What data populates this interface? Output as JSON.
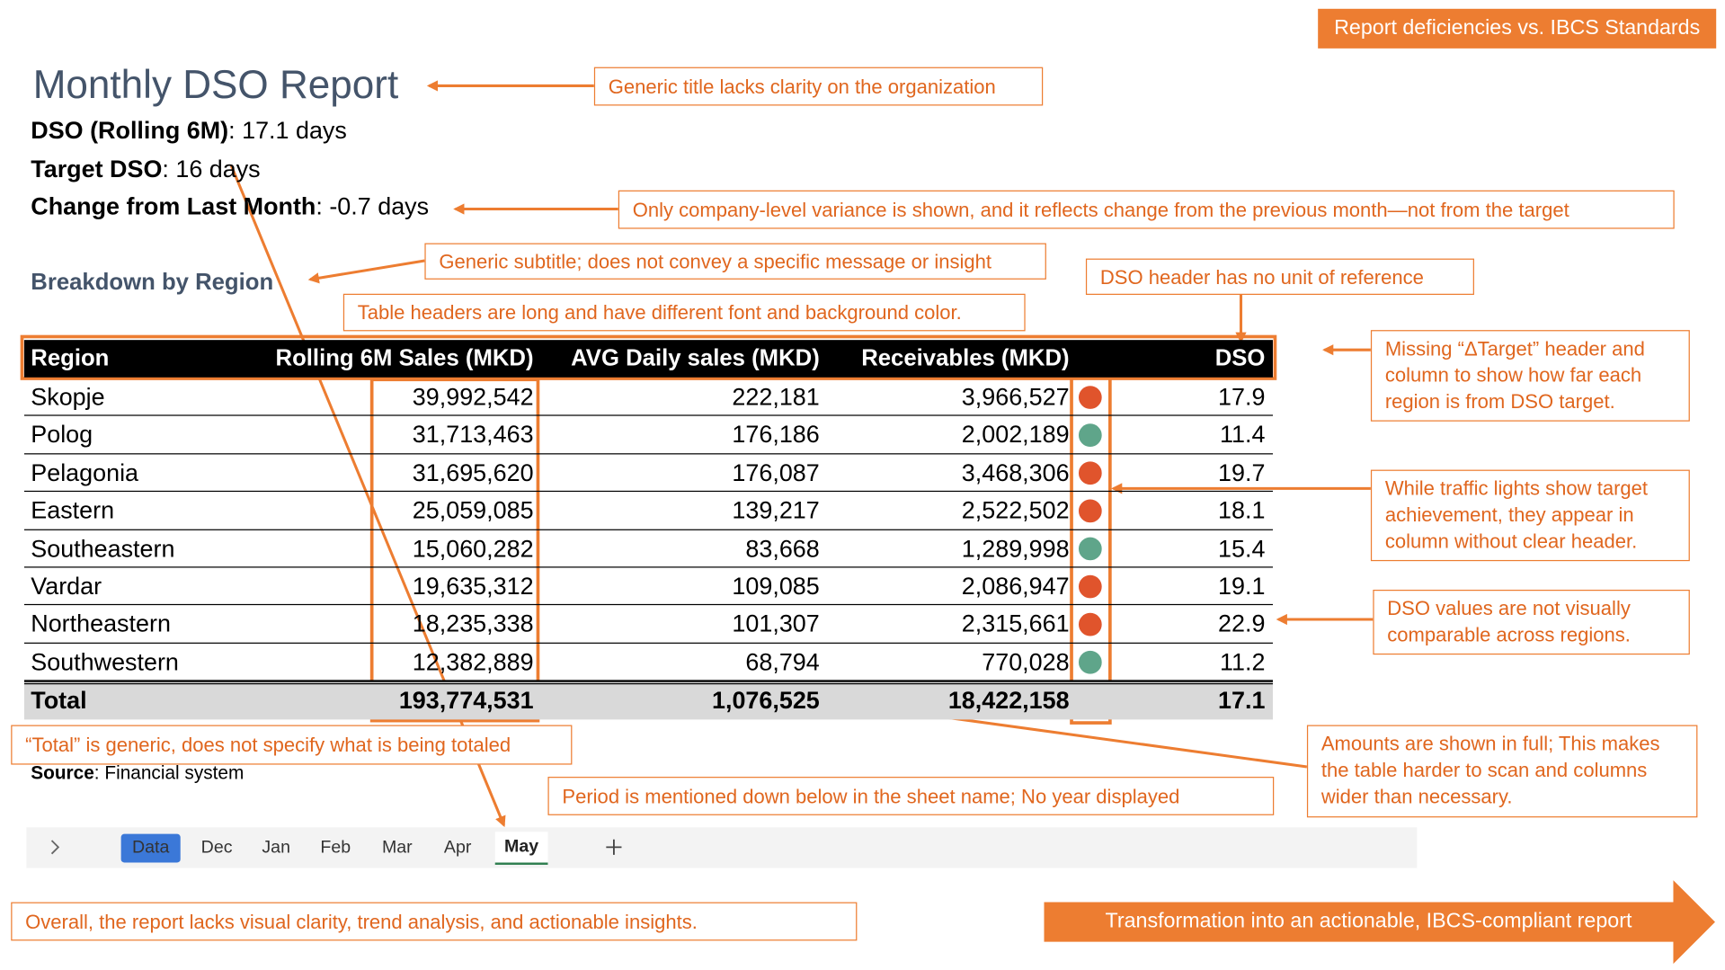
{
  "badge": "Report deficiencies vs. IBCS Standards",
  "report": {
    "title": "Monthly DSO Report",
    "kpis": [
      {
        "label": "DSO (Rolling 6M)",
        "value": ": 17.1 days"
      },
      {
        "label": "Target DSO",
        "value": ": 16 days"
      },
      {
        "label": "Change from Last Month",
        "value": ": -0.7 days"
      }
    ],
    "subtitle": "Breakdown by Region",
    "table": {
      "columns": [
        "Region",
        "Rolling 6M Sales (MKD)",
        "AVG Daily sales (MKD)",
        "Receivables (MKD)",
        "DSO"
      ],
      "rows": [
        [
          "Skopje",
          "39,992,542",
          "222,181",
          "3,966,527",
          "17.9"
        ],
        [
          "Polog",
          "31,713,463",
          "176,186",
          "2,002,189",
          "11.4"
        ],
        [
          "Pelagonia",
          "31,695,620",
          "176,087",
          "3,468,306",
          "19.7"
        ],
        [
          "Eastern",
          "25,059,085",
          "139,217",
          "2,522,502",
          "18.1"
        ],
        [
          "Southeastern",
          "15,060,282",
          "83,668",
          "1,289,998",
          "15.4"
        ],
        [
          "Vardar",
          "19,635,312",
          "109,085",
          "2,086,947",
          "19.1"
        ],
        [
          "Northeastern",
          "18,235,338",
          "101,307",
          "2,315,661",
          "22.9"
        ],
        [
          "Southwestern",
          "12,382,889",
          "68,794",
          "770,028",
          "11.2"
        ]
      ],
      "total": [
        "Total",
        "193,774,531",
        "1,076,525",
        "18,422,158",
        "17.1"
      ],
      "lights": [
        "#e0542c",
        "#5fa58a",
        "#e0542c",
        "#e0542c",
        "#5fa58a",
        "#e0542c",
        "#e0542c",
        "#5fa58a",
        "#e0542c"
      ]
    },
    "source": {
      "label": "Source",
      "text": ": Financial system"
    },
    "sheet_tabs": [
      "Data",
      "Dec",
      "Jan",
      "Feb",
      "Mar",
      "Apr",
      "May"
    ]
  },
  "annotations": [
    "Generic title lacks clarity on the organization",
    "Only company-level variance is shown, and it reflects change from the previous month—not from the target",
    "Generic subtitle; does not convey a specific message or insight",
    "DSO header has no unit of reference",
    "Table headers are long and have different font and background color.",
    "Missing “ΔTarget” header and column to show how far each region is from DSO target.",
    "While traffic lights show target achievement, they appear in column without clear header.",
    "DSO values are not visually comparable across regions.",
    "“Total” is generic, does not specify what is being totaled",
    "Period is mentioned down below in the sheet name; No year displayed",
    "Amounts are shown in full; This makes the table harder to scan and columns wider than necessary.",
    "Overall, the report lacks visual clarity, trend analysis, and actionable insights."
  ],
  "banner": "Transformation into an actionable, IBCS-compliant report"
}
